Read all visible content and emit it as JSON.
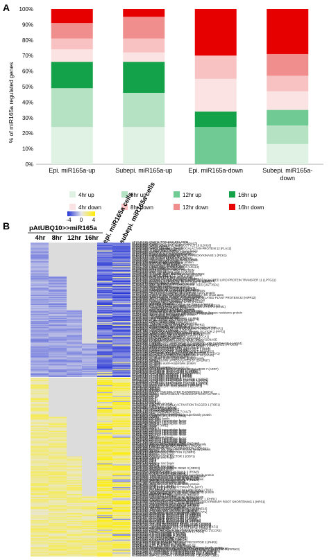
{
  "panel_a": {
    "letter": "A",
    "chart_data": {
      "type": "bar",
      "stacked": true,
      "ylabel": "% of miR165a regulated genes",
      "ylim": [
        0,
        100
      ],
      "yticks": [
        "0%",
        "10%",
        "20%",
        "30%",
        "40%",
        "50%",
        "60%",
        "70%",
        "80%",
        "90%",
        "100%"
      ],
      "categories": [
        {
          "line1": "Epi. miR165a-up",
          "line2": ""
        },
        {
          "line1": "Subepi. miR165a-up",
          "line2": ""
        },
        {
          "line1": "Epi. miR165a-down",
          "line2": ""
        },
        {
          "line1": "Subepi. miR165a-",
          "line2": "down"
        }
      ],
      "series": [
        {
          "name": "4hr up",
          "color": "#dff2e4",
          "values": [
            24,
            24,
            0,
            13
          ]
        },
        {
          "name": "8hr up",
          "color": "#b4e2c2",
          "values": [
            25,
            22,
            0,
            12
          ]
        },
        {
          "name": "12hr up",
          "color": "#6fcb93",
          "values": [
            0,
            0,
            24,
            10
          ]
        },
        {
          "name": "16hr up",
          "color": "#13a14a",
          "values": [
            17,
            20,
            10,
            0
          ]
        },
        {
          "name": "4hr down",
          "color": "#fbe3e3",
          "values": [
            8,
            6,
            21,
            12
          ]
        },
        {
          "name": "8hr down",
          "color": "#f8c2c2",
          "values": [
            7,
            9,
            15,
            10
          ]
        },
        {
          "name": "12hr down",
          "color": "#f08d8d",
          "values": [
            10,
            14,
            0,
            14
          ]
        },
        {
          "name": "16hr down",
          "color": "#e60000",
          "values": [
            9,
            5,
            30,
            29
          ]
        }
      ]
    }
  },
  "panel_b": {
    "letter": "B",
    "scale": {
      "labels": [
        "-4",
        "0",
        "4"
      ]
    },
    "group_label": "pAtUBQ10>>miR165a",
    "columns": [
      "4hr",
      "8hr",
      "12hr",
      "16hr"
    ],
    "cell_columns": [
      "epi. miR165a cells",
      "subepi. miR165a cells"
    ],
    "colors": {
      "low": "#2433d6",
      "mid": "#e6e6ea",
      "high": "#ffee00",
      "blank": "#dcdcdc"
    },
    "genes": [
      "AT1G45130 ATHB15 TOPLESS RELATED",
      "AT1G52150 BETA-GALACTOSIDASE 5 (BGAL5)",
      "AT4G32880 ATHB8",
      "AT5G60690 AUXIN SENSITIVE HYPOCOTYLS 10 (LSH10)",
      "AT2G45450 LITTLE ZIPPER 1 (ZPR1)",
      "AT3G60390 ATHB3 (HAT3)",
      "AT1G61540 FASCICLIN-LIKE ARABINOGALACTAN-PROTEIN 12 (FLA12)",
      "AT3G60390 LITTLE ZIPPER 2 (ZPR2)",
      "AT1G12180 H+ exporting ATPase",
      "AT5G09440 Member of the CYP707A gene family",
      "AT1G64380 CARBOXYESTERASE 17 (CXE17)",
      "AT3G13540 DNA binding domain transporter",
      "AT1G56050 Protein kinase superfamily protein",
      "AT4G37870 PHOSPHOENOLPYRUVATE CARBOXYKINASE 1 (PCK1)",
      "AT1G15270 ROTUNDIFOLIA like 16",
      "AT3G63240 AUXIN RESPONSE FACTOR",
      "AT2G46740 LIKE AUXIN RESISTANT (LAX2)",
      "AT5G05360 FAD-binding Berberine family protein",
      "AT5G44400 CRNC-like cupins superfamily protein",
      "AT3G61040 transmembrane protein",
      "AT1G37130 Protein kinase superfamily protein",
      "AT3G51600 NITRATE REDUCTASE 2",
      "AT4G13660 RING zinc finger protein",
      "AT5G36210 RNA-MIE2 C-TERMINAL RRM ONLY",
      "AT2G27780 transposable element gene",
      "AT3G14750 ALPHA-GALACTOSIDASE 2 (AGAL2)",
      "AT1G08630 THREONINE ALDOLASE 1",
      "AT3G63070 MONOCOPPER OXIDASE",
      "AT2G41090 MATE EFFLUX FAMILY PROTEIN",
      "AT4G21610 LACCASE 11",
      "AT5G03120 NIMS-TARGETED VQP 3 (MVQ3)",
      "AT2G40630 RING zinc finger protein",
      "AT5G61030 GLYCINE-RICH RNA-BINDING PROTEIN",
      "AT3G61040 SIAMESE-RELATED (SMR) family gene",
      "AT1G78630 PLANT U-BOX 4",
      "AT5G39620 MLP-LIKE PROTEIN 28 (MLP28)",
      "AT1G17020 SENESCENCE-RELATED GENE 1",
      "AT4G32810 Subtilisin-like serine protease (AtSBT1.1)",
      "AT5G43300 GLYCOSYLPHOSPHATIDYLINOSITOL-ANCHORED LIPID PROTEIN TRANSFER 11 (LPTG11)",
      "AT1G17840 INOSITOL-3-PHOSPHATE SYNTHASE 1 (MIPS1)",
      "AT2G24040 MORPHOGENESIS OF ROOT HAIR 1 (MRH1)",
      "AT5G13570 transmembrane protein",
      "AT1G22570 Major facilitator superfamily protein",
      "AT3G22570 UDP-GLUCOSYL TRANSFERASE 76D1 (UGT76D1)",
      "AT2G19800 GDSL-like Lipase",
      "AT1G76240 Peroxidase superfamily protein",
      "AT5G57700 PROTEIN TRANSPORTER 1 (IST1)",
      "AT1G77690 MYB DOMAIN PROTEIN 3 (MYB3)",
      "AT2G20220 GIBBERELLIN 2-OXIDASE (GA2OX6)",
      "AT4G12420 CYSTEINE-RICH SECRETORY PROTEIN",
      "AT5G20630 GERMIN-LIKE PROTEIN 3 (GLP3)",
      "AT5G64080 Pollen Ole e 1 allergen and extensin family protein",
      "AT1G24070 CELLULOSE SYNTHASE-LIKE A10",
      "AT4G13240 Protein of unknown function expressed in the shoot apex",
      "AT2G43080 NUCLEOSIDE HYDROLASE 3 (NSH3)",
      "AT5G17800 PURPLE ACID PHOSPHATASE 3 (PAP3)",
      "AT4G00080 HEAVY METAL ASSOCIATED ISOPRENYLATED PLANT PROTEIN 22 (HIPP22)",
      "AT1G64660 METHIONINE GAMMA-LYASE (MGL)",
      "AT3G01500 BETA CARBONIC ANHYDRASE 3 (BCA3)",
      "AT3G45930 ALPHA DIOXYGENASE 1 (DOX1)",
      "AT5G54360 PYRROLINE-5-CARBOXYLATE (P5CS2)",
      "AT4G34020 KINESIN-LIKE PROTEIN",
      "AT5G19875 SERPIN4 (SERP4)",
      "AT3G06110 MULTIDRUG RESISTANCE PROTEIN 2 (MRP2)",
      "AT1G65670 MATERNAL EFFECT EMBRYO ARREST 22 (MEE22)",
      "AT2G36870 expressed protein with associated target of ATAF1 (STM1)",
      "AT1G03700 Protein PIN-FORMED (PIN4)",
      "AT3G43810 CALMODULIN GATED K+ (KCO3)",
      "AT5G01210 Major facilitator superfamily protein",
      "AT5G63560 Phosphoglycerate mutase family protein",
      "AT1G73770 Protein kinase of the TIR-NBS-LRR class",
      "AT3G54040 NBS-ARC and NB-ARC domains-containing disease resistance protein",
      "AT4G23300 Glycoprotein membrane precursor GPI-anchored",
      "AT2G43880 Pectin lyase-like superfamily protein",
      "AT5G41060 Polynucleotidyl transferase",
      "AT5G44720 ATP sulfurylase (APS4)",
      "AT1G67860 transmembrane protein",
      "AT3G04100 LIPID TRANSFER PROTEIN 4 (LTP4)",
      "AT5G63500 LIPID TRANSFER PROTEIN 4 (LTP4)",
      "AT1G67470 Protein kinase superfamily protein",
      "AT5G13170 SWEET15 (SAG29)",
      "AT4G25960 P-GLYCOPROTEIN 2 (PGP2)",
      "AT3G62680 PROLINE-RICH PROTEIN 3 (PRP3)",
      "AT4G05030 LONG HYPOCOTYL IN FAR-RED (HFR1)",
      "AT5G62320 MYB DOMAIN PROTEIN 99",
      "AT2G33570 Glycosyltransferase family protein",
      "AT4G30470 NAD(P)-binding Rossmann-fold superfamily protein",
      "AT1G56650 PRODUCTION OF ANTHOCYANIN PIGMENT 1 (PAP1)",
      "AT1G56650 CYTOKININ OXIDASE 5 (CKX5)",
      "AT2G47540 Pollen Ole e 1 allergen",
      "AT3G01550 PHOSPHOENOLPYRUVATE TRANSLOCATOR 2 (PPT2)",
      "AT4G36250 ALDEHYDE DEHYDROGENASE 3F1",
      "AT1G29160 Dof-type zinc finger DNA-binding family protein",
      "AT5G07690 MORE AXILLARY BRANCHES 1 (MAX1)",
      "AT3G22400 LIPOXYGENASE 5 (LOX5)",
      "AT2G46830 CIRCADIAN CLOCK ASSOCIATED 1 (CCA1)",
      "AT4G37750 AINTEGUMENTA (ANT)",
      "AT1G68810 BASIC HELIX-LOOP-HELIX (BHLH30)",
      "AT3G20810 2-OXOGLUTARATE-DEPENDENT DIOXYGENASE",
      "AT5G57560 TOUCH 4 (TCH4)",
      "AT1G75580 SAUR-like auxin-responsive protein family",
      "AT4G38860 SAUR16",
      "AT2G22810 1-AMINO-CYCLOPROPANE-1-CARBOXYLATE SYNTHASE 4 (ACS4)",
      "AT3G59900 AUXIN-REGULATED GENE INVOLVED IN ORGAN SIZE (ARGOS)",
      "AT5G47370 HOMEOBOX-LEUCINE ZIPPER PROTEIN 2 (HAT2)",
      "AT1G14920 GIBBERELLIC ACID INSENSITIVE (GAI)",
      "AT2G23170 GH3.3 auxin-responsive",
      "AT4G14560 INDOLE-3-ACETIC ACID INDUCIBLE 1 (IAA1)",
      "AT3G23030 INDOLE-3-ACETIC ACID INDUCIBLE 2 (IAA2)",
      "AT1G04250 AUXIN RESISTANT 3 (AXR3)",
      "AT2G33310 INDOLE-3-ACETIC ACID INDUCIBLE 13 (IAA13)",
      "AT5G25190 ETHYLENE AND SALT INDUCIBLE 3 (ESE3)",
      "AT4G26150 CYTOKININ-RESPONSIVE GATA FACTOR 1 (CGA1)",
      "AT1G13260 RELATED TO ABI3/VP1 1 (RAV1)",
      "AT3G15540 INDOLE-3-ACETIC ACID INDUCIBLE 19 (IAA19)",
      "AT5G12050 Rho GTPase activation protein",
      "AT2G45210 SAUR-like auxin-responsive protein",
      "AT4G34760 SAUR-like auxin-responsive protein family",
      "AT3G03830 SAUR28",
      "AT1G29510 SMALL AUXIN UPREGULATED 67 (SAUR67)",
      "AT2G21210 SAUR6",
      "AT5G18010 SAUR19",
      "AT1G72430 SAUR-like auxin-responsive protein",
      "AT4G00880 SAUR31",
      "AT3G12830 SAUR72",
      "AT2G18010 SAUR10",
      "AT5G66580 unknown protein",
      "AT3G62100 PROTEIN PHOSPHATASE 2C",
      "AT1G19050 ARABIDOPSIS RESPONSE REGULATOR 7 (ARR7)",
      "AT2G40670 RESPONSE REGULATOR 16 (ARR16)",
      "AT5G62920 RESPONSE REGULATOR 6 (ARR6)",
      "AT3G48100 RESPONSE REGULATOR 5 (ARR5)",
      "AT1G74890 RESPONSE REGULATOR 15 (ARR15)",
      "AT4G29740 CYTOKININ OXIDASE 4 (CKX4)",
      "AT2G41510 CYTOKININ OXIDASE 1 (CKX1)",
      "AT5G56970 CYTOKININ OXIDASE 3 (CKX3)",
      "AT3G63440 CYTOKININ OXIDASE 6 (CKX6)",
      "AT1G75450 CYTOKININ OXIDASE 5",
      "AT4G23750 CYTOKININ RESPONSE FACTOR 2 (CRF2)",
      "AT2G46310 CYTOKININ RESPONSE FACTOR 5 (CRF5)",
      "AT5G53290 CYTOKININ RESPONSE FACTOR 3 (CRF3)",
      "AT1G68550 CRF10",
      "AT3G61630 CYTOKININ RESPONSE FACTOR 6 (CRF6)",
      "AT4G27950 CYTOKININ RESPONSE FACTOR 4 (CRF4)",
      "AT2G23340 DREB and EAR motif protein 3 (DEAR3)",
      "AT5G67190 DREB and EAR motif protein 2 (DEAR2)",
      "AT1G46768 RAP2.1",
      "AT3G11020 DREB2B",
      "AT4G25480 DREB1A",
      "AT2G40340 DREB2C",
      "AT5G05410 DREB2A",
      "AT1G12610 DWARF AND DELAYED FLOWERING 1 (DDF1)",
      "AT3G50260 CEJ1",
      "AT4G34410 REDOX RESPONSIVE TRANSCRIPTION FACTOR 1",
      "AT2G20880 ERF53",
      "AT5G61890 ERF114",
      "AT1G28360 ERF12",
      "AT3G15210 ERF4",
      "AT4G17500 ERF1",
      "AT2G44840 ERF13",
      "AT5G47220 ERF2",
      "AT1G53910 RAP2.12",
      "AT3G16770 RAP2.3",
      "AT4G36920 APETALA 2 (AP2)",
      "AT2G28550 TARGET OF EARLY ACTIVATION TAGGED 1 (TOE1)",
      "AT5G60120 TOE2",
      "AT1G51190 PLETHORA 2 (PLT2)",
      "AT3G20840 PLETHORA 1 (PLT1)",
      "AT5G17430 BABY BOOM (BBM)",
      "AT4G37750 AINTEGUMENTA-LIKE",
      "AT2G41710 AP2-domain protein",
      "AT5G65510 AINTEGUMENTA-LIKE 7 (AIL7)",
      "AT1G72570 AIL1",
      "AT3G54990 SCHLAFMUTZE (SMZ)",
      "AT4G13620 Integrase-type DNA-binding superfamily protein",
      "AT2G39250 SCHNARCHZAPFEN (SNZ)",
      "AT5G18560 PUCHI",
      "AT1G64380 ERF061",
      "AT3G25890 ERF/AP2 family",
      "AT4G32800 ERF043",
      "AT2G25820 ERF/AP2 transcription factor",
      "AT5G52020 ERF/AP2 transcription factor",
      "AT1G22190 RAP2.4",
      "AT3G60490 ERF/AP2 transcription factor",
      "AT4G06746 RAP2.9",
      "AT2G36450 HARDY (HRD)",
      "AT5G11590 TINY2",
      "AT1G78080 RAP2.4",
      "AT3G23220 ESE1",
      "AT4G39780 ERF/AP2 transcription factor",
      "AT2G33710 ERF/AP2 transcription factor",
      "AT5G21960 ERF/AP2 transcription factor",
      "AT1G33760 ERF/AP2 transcription factor",
      "AT3G57600 ERF/AP2 transcription factor",
      "AT4G16750 ERF/AP2 transcription factor",
      "AT2G35700 ERF038",
      "AT5G25810 TINY",
      "AT1G36060 Translucent Green",
      "AT3G16280 ERF/AP2 transcription factor",
      "AT4G28140 ERF/AP2 transcription factor",
      "AT2G22200 ERF/AP2 transcription factor",
      "AT5G07580 ERF/AP2 transcription factor",
      "AT1G71520 ERF/AP2 transcription factor",
      "AT3G24640 UBIQUITIN-CONJUGATING ENZYME",
      "AT4G35070 SBP (S-ribonuclease binding protein) family",
      "AT2G02820 MYB DOMAIN PROTEIN 88",
      "AT5G60200 TARGET OF MONOPTEROS 6 (TMO6)",
      "AT1G64790 ILITYHIA (ILA)",
      "AT3G61850 DOF AFFECTING GERMINATION 1 (DAG1)",
      "AT4G24060 Dof-type zinc finger DNA-binding family protein",
      "AT2G46590 DAG2",
      "AT5G66940 Dof-type zinc finger",
      "AT1G07640 OBF BINDING PROTEIN 2 (OBP2)",
      "AT3G45610 DOF6",
      "AT4G00940 Dof-type zinc finger",
      "AT2G28510 Dof1.2",
      "AT5G62430 CYCLING DOF FACTOR 1 (CDF1)",
      "AT1G26790 Dof-type zinc finger",
      "AT3G47500 CDF3",
      "AT4G38000 DOF4.7",
      "AT2G34140 CDF4",
      "AT5G39660 CDF2",
      "AT1G69570 CDF5",
      "AT3G52440 Dof-type zinc finger",
      "AT4G21030 DOF4.2",
      "AT2G37590 DOF2.4",
      "AT5G02460 Dof-type zinc finger",
      "AT1G47655 Dof-type zinc finger",
      "AT3G55370 OBP3-RESPONSIVE GENE 3 (ORG3)",
      "AT4G21050 Dof-type zinc finger",
      "AT2G45820 REMORIN 1.3",
      "AT5G23405 HMG-box protein",
      "AT1G75250 RADIALIS-LIKE SANT/MYB 3 (RSM3)",
      "AT3G10113 MYB-like transcription factor",
      "AT4G36570 RADIALIS-LIKE SANT/MYB 3",
      "AT2G38090 Duplicated homeodomain-like superfamily protein",
      "AT5G58900 Homeodomain-like transcriptional regulator",
      "AT1G19000 Homeodomain-like superfamily protein",
      "AT3G16350 Homeodomain-like superfamily protein",
      "AT4G09450 Myb-like transcription factor family protein",
      "AT2G18328 RADIALIS-LIKE SANT/MYB 4 (RSM4)",
      "AT5G47390 MYB-like transcription factor",
      "AT1G70000 Myb-like transcription factor",
      "AT3G11280 Duplicated homeodomain-like",
      "AT4G01280 Homeodomain-like superfamily protein",
      "AT2G46830 CCA1",
      "AT5G17300 REVEILLE 1 (RVE1)",
      "AT1G01060 LATE ELONGATED HYPOCOTYL (LHY)",
      "AT3G09600 REVEILLE 8 (RVE8)",
      "AT4G01280 REVEILLE 5",
      "AT2G36960 TSL-KINASE INTERACTING PROTEIN 1 (TKI1)",
      "AT5G56840 myb-like transcription factor family protein",
      "AT1G49010 Duplicated homeodomain-like superfamily protein",
      "AT3G10580 Homeodomain-like superfamily protein",
      "AT4G12670 Sant/myb domain",
      "AT2G01060 myb-like HTH transcriptional regulator",
      "AT5G29000 PHR1-LIKE 1 (PHL1)",
      "AT1G25550 myb-like transcription factor family protein",
      "AT3G04030 Homeodomain-like superfamily protein",
      "AT4G28610 PHOSPHATE STARVATION RESPONSE 1 (PHR1)",
      "AT2G20400 myb-like HTH transcriptional regulator",
      "AT5G45580 Homeodomain-like superfamily protein",
      "AT1G13300 HYPERSENSITIVITY TO LOW PI-ELICITED PRIMARY ROOT SHORTENING 1 (HRS1)",
      "AT3G25790 myb-like transcription factor family protein",
      "AT4G37180 Homeodomain-like superfamily protein",
      "AT2G40970 MYB DOMAIN PROTEIN C1 (MYBC1)",
      "AT5G06800 myb-like HTH transcriptional regulator",
      "AT1G68670 myb-like transcription factor",
      "AT3G12730 Homeodomain-like superfamily protein",
      "AT4G13640 UNFERTILIZED EMBRYO SAC 16 (UNE16)",
      "AT2G03500 Homeodomain-like superfamily protein",
      "AT5G18240 MYB-RELATED PROTEIN 1 (MYR1)",
      "AT1G79430 ALTERED PHLOEM DEVELOPMENT (APL)",
      "AT3G24120 Homeodomain-like superfamily protein",
      "AT4G31920 RESPONSE REGULATOR 10 (ARR10)",
      "AT2G25180 RESPONSE REGULATOR 12 (ARR12)",
      "AT5G58080 RESPONSE REGULATOR 18 (ARR18)",
      "AT1G67710 RESPONSE REGULATOR 11 (ARR11)",
      "AT3G16857 RESPONSE REGULATOR 1 (ARR1)",
      "AT4G16110 RESPONSE REGULATOR 2 (ARR2)",
      "AT2G01760 RESPONSE REGULATOR 14 (ARR14)",
      "AT5G07210 RESPONSE REGULATOR 21 (ARR21)",
      "AT1G49190 RESPONSE REGULATOR 19 (ARR19)",
      "AT3G62670 RESPONSE REGULATOR 20",
      "AT4G00760 PSEUDO-RESPONSE REGULATOR 8 (PRR8)",
      "AT2G46790 PSEUDO-RESPONSE REGULATOR 9 (PRR9)",
      "AT5G24470 PSEUDO-RESPONSE REGULATOR 5 (PRR5)",
      "AT1G68050 FLAVIN-BINDING KELCH REPEAT F-BOX 1 (FKF1)",
      "AT3G56260 unknown protein",
      "AT5G60100 PSEUDO-RESPONSE REGULATOR 3 (PRR3)",
      "AT1G22770 GIGANTEA (GI)",
      "AT2G21660 COLD CIRCADIAN RHYTHM RNA BINDING 2 (CCR2)",
      "AT5G61380 TIMING OF CAB EXPRESSION 1 (TOC1)",
      "AT1G09570 PHYTOCHROME A (PHYA)",
      "AT2G18790 PHYTOCHROME B (PHYB)",
      "AT5G35840 PHYTOCHROME C (PHYC)",
      "AT4G16250 PHYTOCHROME D (PHYD)",
      "AT4G18130 PHYTOCHROME E (PHYE)",
      "AT1G04400 CRYPTOCHROME 2 (CRY2)",
      "AT4G08920 CRYPTOCHROME 1 (CRY1)",
      "AT3G15620 UV REPAIR DEFECTIVE 3",
      "AT5G24850 CRYPTOCHROME 3 (CRY3)",
      "AT1G12370 PHOTOLYASE 1 (PHR1)",
      "AT2G47590 PHOTOLYASE/BLUE-LIGHT RECEPTOR 2 (PHR2)",
      "AT3G45780 PHOTOTROPIN 1 (PHOT1)",
      "AT5G58140 PHOTOTROPIN 2 (PHOT2)",
      "AT5G45140 NUCLEAR RNA POLYMERASE C2",
      "AT4G35800 NUCLEAR RNA POLYMERASE B1",
      "AT1G60890 Phosphatidylinositol-4-phosphate 5-kinase family protein",
      "AT3G09920 PHOSPHATIDYL INOSITOL MONOPHOSPHATE 5 KINASE",
      "AT2G26420 1-PHOSPHATIDYLINOSITOL-4-PHOSPHATE 5-KINASE 3 (PIP5K3)",
      "AT5G19350 RNA-binding (RRM/RBD/RNP motifs) family protein",
      "AT1G17180 GLUTATHIONE S-TRANSFERASE TAU 25 (GSTU25)",
      "AT2G29460 GLUTATHIONE S-TRANSFERASE TAU 4 (GSTU4)",
      "AT3G09270 GLUTATHIONE S-TRANSFERASE TAU 8 (GSTU8)",
      "AT4G02520 GLUTATHIONE S-TRANSFERASE PHI 2 (GSTF2)",
      "AT5G66580 UDP-GLUCOSYL TRANSFERASE 72E2 (UGT72E2)"
    ]
  }
}
